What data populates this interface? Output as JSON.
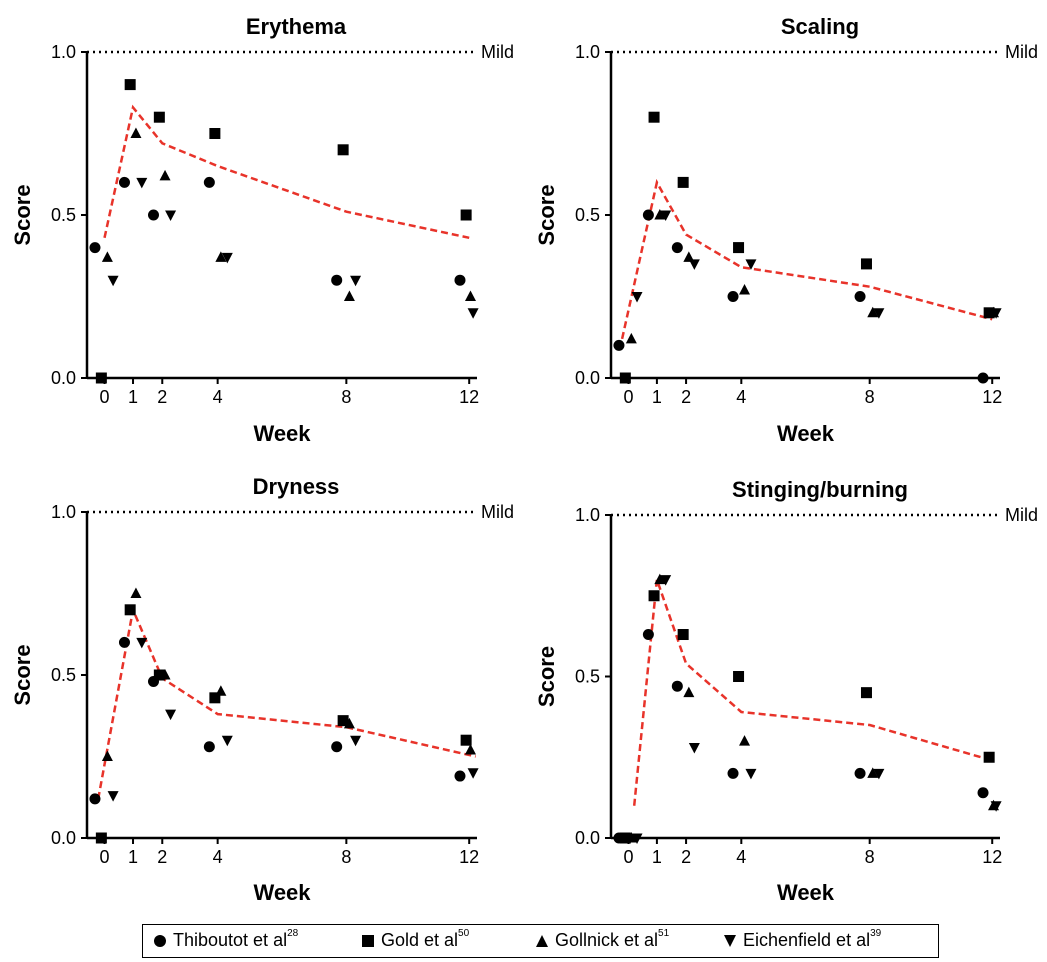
{
  "colors": {
    "trend": "#e8332a",
    "markers": "#000000"
  },
  "legend": [
    {
      "marker": "circle",
      "label": "Thiboutot et al",
      "ref": "28"
    },
    {
      "marker": "square",
      "label": "Gold et al",
      "ref": "50"
    },
    {
      "marker": "triangle-up",
      "label": "Gollnick et al",
      "ref": "51"
    },
    {
      "marker": "triangle-down",
      "label": "Eichenfield et al",
      "ref": "39"
    }
  ],
  "chart_data": [
    {
      "type": "scatter",
      "title": "Erythema",
      "xlabel": "Week",
      "ylabel": "Score",
      "x_ticks": [
        0,
        1,
        2,
        4,
        8,
        12
      ],
      "y_ticks": [
        "0.0",
        "0.5",
        "1.0"
      ],
      "ylim": [
        0,
        1
      ],
      "reference_line": {
        "y": 1.0,
        "label": "Mild"
      },
      "series": [
        {
          "name": "Thiboutot et al",
          "marker": "circle",
          "points": [
            [
              -0.3,
              0.4
            ],
            [
              0.7,
              0.6
            ],
            [
              1.7,
              0.5
            ],
            [
              3.7,
              0.6
            ],
            [
              7.7,
              0.3
            ],
            [
              11.7,
              0.3
            ]
          ]
        },
        {
          "name": "Gold et al",
          "marker": "square",
          "points": [
            [
              -0.1,
              0
            ],
            [
              0.9,
              0.9
            ],
            [
              1.9,
              0.8
            ],
            [
              3.9,
              0.75
            ],
            [
              7.9,
              0.7
            ],
            [
              11.9,
              0.5
            ]
          ]
        },
        {
          "name": "Gollnick et al",
          "marker": "triangle-up",
          "points": [
            [
              0.1,
              0.37
            ],
            [
              1.1,
              0.75
            ],
            [
              2.1,
              0.62
            ],
            [
              4.1,
              0.37
            ],
            [
              8.1,
              0.25
            ],
            [
              12.1,
              0.25
            ]
          ]
        },
        {
          "name": "Eichenfield et al",
          "marker": "triangle-down",
          "points": [
            [
              0.3,
              0.3
            ],
            [
              1.3,
              0.6
            ],
            [
              2.3,
              0.5
            ],
            [
              4.3,
              0.37
            ],
            [
              8.3,
              0.3
            ],
            [
              12.3,
              0.2
            ]
          ]
        }
      ],
      "trend": [
        [
          0,
          0.43
        ],
        [
          1,
          0.83
        ],
        [
          2,
          0.72
        ],
        [
          4,
          0.65
        ],
        [
          8,
          0.51
        ],
        [
          12,
          0.43
        ]
      ]
    },
    {
      "type": "scatter",
      "title": "Scaling",
      "xlabel": "Week",
      "ylabel": "Score",
      "x_ticks": [
        0,
        1,
        2,
        4,
        8,
        12
      ],
      "y_ticks": [
        "0.0",
        "0.5",
        "1.0"
      ],
      "ylim": [
        0,
        1
      ],
      "reference_line": {
        "y": 1.0,
        "label": "Mild"
      },
      "series": [
        {
          "name": "Thiboutot et al",
          "marker": "circle",
          "points": [
            [
              -0.3,
              0.1
            ],
            [
              0.7,
              0.5
            ],
            [
              1.7,
              0.4
            ],
            [
              3.7,
              0.25
            ],
            [
              7.7,
              0.25
            ],
            [
              11.7,
              0
            ]
          ]
        },
        {
          "name": "Gold et al",
          "marker": "square",
          "points": [
            [
              -0.1,
              0
            ],
            [
              0.9,
              0.8
            ],
            [
              1.9,
              0.6
            ],
            [
              3.9,
              0.4
            ],
            [
              7.9,
              0.35
            ],
            [
              11.9,
              0.2
            ]
          ]
        },
        {
          "name": "Gollnick et al",
          "marker": "triangle-up",
          "points": [
            [
              0.1,
              0.12
            ],
            [
              1.1,
              0.5
            ],
            [
              2.1,
              0.37
            ],
            [
              4.1,
              0.27
            ],
            [
              8.1,
              0.2
            ],
            [
              12.1,
              0.2
            ]
          ]
        },
        {
          "name": "Eichenfield et al",
          "marker": "triangle-down",
          "points": [
            [
              0.3,
              0.25
            ],
            [
              1.3,
              0.5
            ],
            [
              2.3,
              0.35
            ],
            [
              4.3,
              0.35
            ],
            [
              8.3,
              0.2
            ],
            [
              12.3,
              0.2
            ]
          ]
        }
      ],
      "trend": [
        [
          -0.2,
          0.12
        ],
        [
          1,
          0.6
        ],
        [
          2,
          0.44
        ],
        [
          4,
          0.34
        ],
        [
          8,
          0.28
        ],
        [
          12,
          0.18
        ]
      ]
    },
    {
      "type": "scatter",
      "title": "Dryness",
      "xlabel": "Week",
      "ylabel": "Score",
      "x_ticks": [
        0,
        1,
        2,
        4,
        8,
        12
      ],
      "y_ticks": [
        "0.0",
        "0.5",
        "1.0"
      ],
      "ylim": [
        0,
        1
      ],
      "reference_line": {
        "y": 1.0,
        "label": "Mild"
      },
      "series": [
        {
          "name": "Thiboutot et al",
          "marker": "circle",
          "points": [
            [
              -0.3,
              0.12
            ],
            [
              0.7,
              0.6
            ],
            [
              1.7,
              0.48
            ],
            [
              3.7,
              0.28
            ],
            [
              7.7,
              0.28
            ],
            [
              11.7,
              0.19
            ]
          ]
        },
        {
          "name": "Gold et al",
          "marker": "square",
          "points": [
            [
              -0.1,
              0
            ],
            [
              0.9,
              0.7
            ],
            [
              1.9,
              0.5
            ],
            [
              3.9,
              0.43
            ],
            [
              7.9,
              0.36
            ],
            [
              11.9,
              0.3
            ]
          ]
        },
        {
          "name": "Gollnick et al",
          "marker": "triangle-up",
          "points": [
            [
              0.1,
              0.25
            ],
            [
              1.1,
              0.75
            ],
            [
              2.1,
              0.5
            ],
            [
              4.1,
              0.45
            ],
            [
              8.1,
              0.35
            ],
            [
              12.1,
              0.27
            ]
          ]
        },
        {
          "name": "Eichenfield et al",
          "marker": "triangle-down",
          "points": [
            [
              0.3,
              0.13
            ],
            [
              1.3,
              0.6
            ],
            [
              2.3,
              0.38
            ],
            [
              4.3,
              0.3
            ],
            [
              8.3,
              0.3
            ],
            [
              12.3,
              0.2
            ]
          ]
        }
      ],
      "trend": [
        [
          -0.2,
          0.12
        ],
        [
          1,
          0.7
        ],
        [
          2,
          0.49
        ],
        [
          4,
          0.38
        ],
        [
          8,
          0.34
        ],
        [
          12.5,
          0.25
        ]
      ]
    },
    {
      "type": "scatter",
      "title": "Stinging/burning",
      "xlabel": "Week",
      "ylabel": "Score",
      "x_ticks": [
        0,
        1,
        2,
        4,
        8,
        12
      ],
      "y_ticks": [
        "0.0",
        "0.5",
        "1.0"
      ],
      "ylim": [
        0,
        1
      ],
      "reference_line": {
        "y": 1.0,
        "label": "Mild"
      },
      "series": [
        {
          "name": "Thiboutot et al",
          "marker": "circle",
          "points": [
            [
              -0.3,
              0
            ],
            [
              0.7,
              0.63
            ],
            [
              1.7,
              0.47
            ],
            [
              3.7,
              0.2
            ],
            [
              7.7,
              0.2
            ],
            [
              11.7,
              0.14
            ]
          ]
        },
        {
          "name": "Gold et al",
          "marker": "square",
          "points": [
            [
              -0.1,
              0
            ],
            [
              0.9,
              0.75
            ],
            [
              1.9,
              0.63
            ],
            [
              3.9,
              0.5
            ],
            [
              7.9,
              0.45
            ],
            [
              11.9,
              0.25
            ]
          ]
        },
        {
          "name": "Gollnick et al",
          "marker": "triangle-up",
          "points": [
            [
              0.1,
              0
            ],
            [
              1.1,
              0.8
            ],
            [
              2.1,
              0.45
            ],
            [
              4.1,
              0.3
            ],
            [
              8.1,
              0.2
            ],
            [
              12.1,
              0.1
            ]
          ]
        },
        {
          "name": "Eichenfield et al",
          "marker": "triangle-down",
          "points": [
            [
              0.3,
              0
            ],
            [
              1.3,
              0.8
            ],
            [
              2.3,
              0.28
            ],
            [
              4.3,
              0.2
            ],
            [
              8.3,
              0.2
            ],
            [
              12.3,
              0.1
            ]
          ]
        }
      ],
      "trend": [
        [
          0.2,
          0.1
        ],
        [
          1,
          0.8
        ],
        [
          2,
          0.54
        ],
        [
          4,
          0.39
        ],
        [
          8,
          0.35
        ],
        [
          12,
          0.24
        ]
      ]
    }
  ]
}
